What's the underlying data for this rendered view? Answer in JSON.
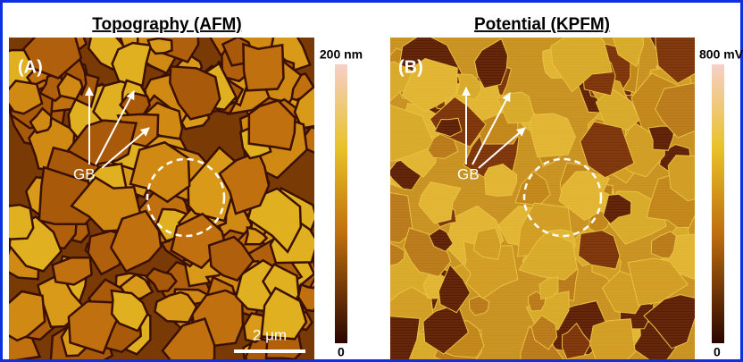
{
  "figure": {
    "panels": [
      {
        "title": "Topography (AFM)",
        "label": "(A)",
        "annotation": "GB",
        "colorbar": {
          "max_label": "200 nm",
          "min_label": "0"
        },
        "scale_bar": "2 μm"
      },
      {
        "title": "Potential (KPFM)",
        "label": "(B)",
        "annotation": "GB",
        "colorbar": {
          "max_label": "800 mV",
          "min_label": "0"
        }
      }
    ]
  }
}
